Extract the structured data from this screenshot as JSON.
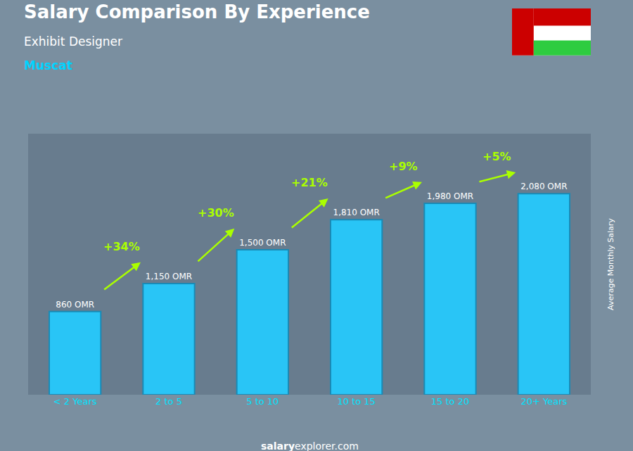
{
  "chart_data": {
    "type": "bar",
    "title": "Salary Comparison By Experience",
    "subtitle": "Exhibit Designer",
    "city": "Muscat",
    "categories": [
      "< 2 Years",
      "2 to 5",
      "5 to 10",
      "10 to 15",
      "15 to 20",
      "20+ Years"
    ],
    "values": [
      860,
      1150,
      1500,
      1810,
      1980,
      2080
    ],
    "value_labels": [
      "860 OMR",
      "1,150 OMR",
      "1,500 OMR",
      "1,810 OMR",
      "1,980 OMR",
      "2,080 OMR"
    ],
    "data_labels": true,
    "color": "#29C5F6",
    "ylabel": "Average Monthly Salary",
    "ylim": [
      0,
      2700
    ],
    "tick_labels": "x",
    "grid": false,
    "annotations": [
      {
        "text": "+34%",
        "from": "< 2 Years",
        "to": "2 to 5"
      },
      {
        "text": "+30%",
        "from": "2 to 5",
        "to": "5 to 10"
      },
      {
        "text": "+21%",
        "from": "5 to 10",
        "to": "10 to 15"
      },
      {
        "text": "+9%",
        "from": "10 to 15",
        "to": "15 to 20"
      },
      {
        "text": "+5%",
        "from": "15 to 20",
        "to": "20+ Years"
      }
    ],
    "footer": [
      "salary",
      "explorer.com"
    ]
  }
}
